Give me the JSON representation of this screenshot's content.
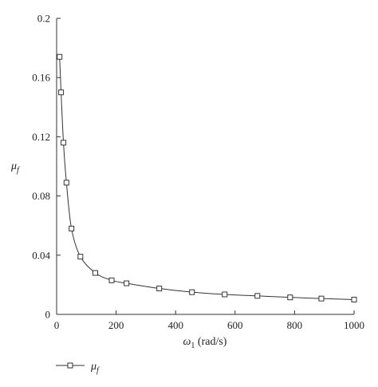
{
  "chart_data": {
    "type": "line",
    "xlabel": "ω1 (rad/s)",
    "xlabel_parts": {
      "symbol": "ω",
      "subscript": "1",
      "unit": " (rad/s)"
    },
    "ylabel": "μf",
    "ylabel_parts": {
      "symbol": "μ",
      "subscript": "f"
    },
    "xlim": [
      0,
      1000
    ],
    "ylim": [
      0,
      0.2
    ],
    "xticks": [
      0,
      200,
      400,
      600,
      800,
      1000
    ],
    "xtick_labels": [
      "0",
      "200",
      "400",
      "600",
      "800",
      "1000"
    ],
    "yticks": [
      0,
      0.04,
      0.08,
      0.12,
      0.16,
      0.2
    ],
    "ytick_labels": [
      "0",
      "0.04",
      "0.08",
      "0.12",
      "0.16",
      "0.2"
    ],
    "grid": false,
    "legend_position": "bottom-left",
    "series": [
      {
        "name": "μf",
        "name_parts": {
          "symbol": "μ",
          "subscript": "f"
        },
        "marker": "square",
        "color": "#333333",
        "x": [
          10,
          15,
          23,
          33,
          50,
          80,
          130,
          185,
          235,
          345,
          455,
          565,
          675,
          785,
          890,
          1000
        ],
        "y": [
          0.174,
          0.15,
          0.116,
          0.089,
          0.058,
          0.039,
          0.028,
          0.023,
          0.021,
          0.0175,
          0.015,
          0.0135,
          0.0125,
          0.0115,
          0.0107,
          0.01
        ]
      }
    ]
  }
}
